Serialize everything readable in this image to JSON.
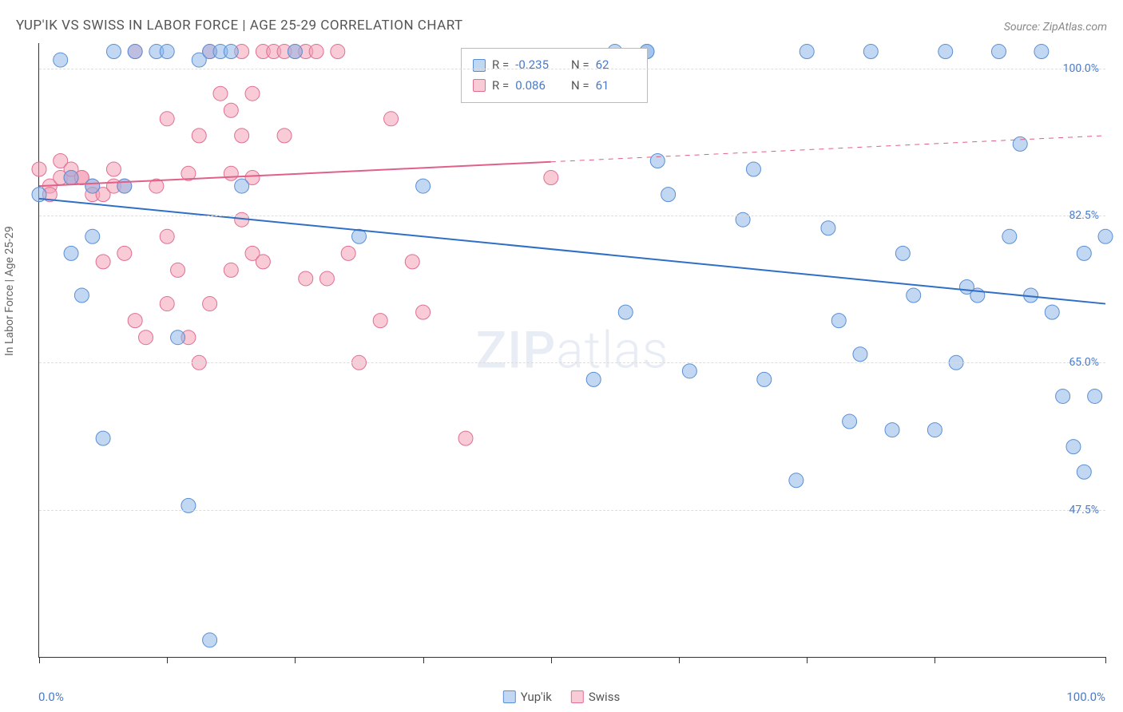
{
  "title": "YUP'IK VS SWISS IN LABOR FORCE | AGE 25-29 CORRELATION CHART",
  "source": "Source: ZipAtlas.com",
  "y_axis_title": "In Labor Force | Age 25-29",
  "watermark_a": "ZIP",
  "watermark_b": "atlas",
  "x_min_label": "0.0%",
  "x_max_label": "100.0%",
  "chart": {
    "type": "scatter",
    "background_color": "#ffffff",
    "grid_color": "#dddddd",
    "axis_color": "#333333",
    "x_domain": [
      0,
      100
    ],
    "y_domain": [
      30,
      103
    ],
    "y_ticks": [
      {
        "v": 47.5,
        "label": "47.5%"
      },
      {
        "v": 65.0,
        "label": "65.0%"
      },
      {
        "v": 82.5,
        "label": "82.5%"
      },
      {
        "v": 100.0,
        "label": "100.0%"
      }
    ],
    "x_tick_positions": [
      0,
      12,
      24,
      36,
      48,
      60,
      72,
      84,
      100
    ],
    "marker_radius": 9,
    "series": [
      {
        "name": "Yup'ik",
        "fill": "rgba(142,183,232,0.55)",
        "stroke": "#5a8fd6",
        "trend": {
          "y_at_x0": 84.5,
          "y_at_x100": 72.0,
          "solid_until_x": 100,
          "color": "#2f6fc6",
          "width": 2
        },
        "stats": {
          "R": "-0.235",
          "N": "62"
        },
        "points": [
          [
            0,
            85
          ],
          [
            2,
            101
          ],
          [
            3,
            87
          ],
          [
            3,
            78
          ],
          [
            4,
            73
          ],
          [
            5,
            86
          ],
          [
            5,
            80
          ],
          [
            6,
            56
          ],
          [
            7,
            102
          ],
          [
            8,
            86
          ],
          [
            9,
            102
          ],
          [
            11,
            102
          ],
          [
            12,
            102
          ],
          [
            13,
            68
          ],
          [
            14,
            48
          ],
          [
            15,
            101
          ],
          [
            16,
            102
          ],
          [
            16,
            32
          ],
          [
            17,
            102
          ],
          [
            18,
            102
          ],
          [
            19,
            86
          ],
          [
            24,
            102
          ],
          [
            30,
            80
          ],
          [
            36,
            86
          ],
          [
            52,
            63
          ],
          [
            54,
            102
          ],
          [
            55,
            71
          ],
          [
            57,
            102
          ],
          [
            58,
            89
          ],
          [
            59,
            85
          ],
          [
            61,
            64
          ],
          [
            66,
            82
          ],
          [
            67,
            88
          ],
          [
            68,
            63
          ],
          [
            71,
            51
          ],
          [
            72,
            102
          ],
          [
            74,
            81
          ],
          [
            75,
            70
          ],
          [
            76,
            58
          ],
          [
            77,
            66
          ],
          [
            78,
            102
          ],
          [
            80,
            57
          ],
          [
            81,
            78
          ],
          [
            82,
            73
          ],
          [
            84,
            57
          ],
          [
            85,
            102
          ],
          [
            86,
            65
          ],
          [
            87,
            74
          ],
          [
            88,
            73
          ],
          [
            90,
            102
          ],
          [
            91,
            80
          ],
          [
            92,
            91
          ],
          [
            93,
            73
          ],
          [
            94,
            102
          ],
          [
            95,
            71
          ],
          [
            96,
            61
          ],
          [
            97,
            55
          ],
          [
            98,
            52
          ],
          [
            98,
            78
          ],
          [
            99,
            61
          ],
          [
            100,
            80
          ],
          [
            57,
            102
          ]
        ]
      },
      {
        "name": "Swiss",
        "fill": "rgba(242,160,182,0.55)",
        "stroke": "#e06f93",
        "trend": {
          "y_at_x0": 86.0,
          "y_at_x100": 92.0,
          "solid_until_x": 48,
          "color": "#e06088",
          "width": 2
        },
        "stats": {
          "R": "0.086",
          "N": "61"
        },
        "points": [
          [
            0,
            88
          ],
          [
            1,
            86
          ],
          [
            1,
            85
          ],
          [
            2,
            89
          ],
          [
            2,
            87
          ],
          [
            3,
            87
          ],
          [
            3,
            87
          ],
          [
            3,
            88
          ],
          [
            4,
            87
          ],
          [
            4,
            87
          ],
          [
            5,
            86
          ],
          [
            5,
            85
          ],
          [
            6,
            77
          ],
          [
            6,
            85
          ],
          [
            7,
            88
          ],
          [
            7,
            86
          ],
          [
            8,
            86
          ],
          [
            8,
            78
          ],
          [
            9,
            102
          ],
          [
            9,
            70
          ],
          [
            10,
            68
          ],
          [
            11,
            86
          ],
          [
            12,
            94
          ],
          [
            12,
            80
          ],
          [
            12,
            72
          ],
          [
            13,
            76
          ],
          [
            14,
            87.5
          ],
          [
            14,
            68
          ],
          [
            15,
            92
          ],
          [
            15,
            65
          ],
          [
            16,
            102
          ],
          [
            16,
            72
          ],
          [
            17,
            97
          ],
          [
            18,
            95
          ],
          [
            18,
            76
          ],
          [
            18,
            87.5
          ],
          [
            19,
            102
          ],
          [
            19,
            92
          ],
          [
            19,
            82
          ],
          [
            20,
            97
          ],
          [
            20,
            87
          ],
          [
            20,
            78
          ],
          [
            21,
            102
          ],
          [
            21,
            77
          ],
          [
            22,
            102
          ],
          [
            23,
            92
          ],
          [
            23,
            102
          ],
          [
            24,
            102
          ],
          [
            25,
            102
          ],
          [
            25,
            75
          ],
          [
            26,
            102
          ],
          [
            27,
            75
          ],
          [
            28,
            102
          ],
          [
            29,
            78
          ],
          [
            30,
            65
          ],
          [
            32,
            70
          ],
          [
            33,
            94
          ],
          [
            35,
            77
          ],
          [
            36,
            71
          ],
          [
            40,
            56
          ],
          [
            48,
            87
          ]
        ]
      }
    ]
  },
  "legend": {
    "yupik_label": "Yup'ik",
    "swiss_label": "Swiss"
  },
  "stats_labels": {
    "R": "R =",
    "N": "N ="
  }
}
